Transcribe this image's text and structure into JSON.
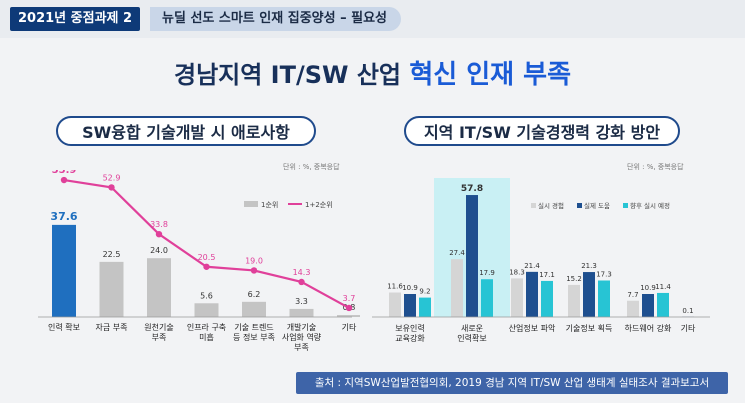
{
  "header": {
    "tag": "2021년 중점과제 2",
    "subtitle": "뉴딜 선도 스마트 인재 집중양성 – 필요성"
  },
  "main_title": {
    "prefix": "경남지역 IT/SW 산업 ",
    "highlight": "혁신 인재 부족"
  },
  "left_panel": {
    "title": "SW융합 기술개발 시 애로사항",
    "unit": "단위 : %, 중복응답"
  },
  "right_panel": {
    "title": "지역 IT/SW 기술경쟁력 강화 방안",
    "unit": "단위 : %, 중복응답"
  },
  "source": "출처 : 지역SW산업발전협의회, 2019 경남 지역 IT/SW 산업 생태계 실태조사 결과보고서",
  "colors": {
    "navy": "#0e3a78",
    "highlight_bar": "#1f6fbf",
    "gray_bar": "#c4c4c4",
    "pink_line": "#e0409a",
    "experience": "#d5d5d5",
    "actual_use": "#1e4f8f",
    "plan": "#27c4d4",
    "highlight_box": "#c9f0f4"
  },
  "chart_data": [
    {
      "type": "bar",
      "title": "SW융합 기술개발 시 애로사항",
      "categories": [
        [
          "인력 확보"
        ],
        [
          "자금 부족"
        ],
        [
          "원천기술",
          "부족"
        ],
        [
          "인프라 구축",
          "미흡"
        ],
        [
          "기술 트렌드",
          "등 정보 부족"
        ],
        [
          "개발기술",
          "사업화 역량",
          "부족"
        ],
        [
          "기타"
        ]
      ],
      "series": [
        {
          "name": "1순위",
          "type": "bar",
          "values": [
            37.6,
            22.5,
            24.0,
            5.6,
            6.2,
            3.3,
            0.8
          ]
        },
        {
          "name": "1+2순위",
          "type": "line",
          "values": [
            55.9,
            52.9,
            33.8,
            20.5,
            19.0,
            14.3,
            3.7
          ]
        }
      ],
      "value_labels_bar": [
        "37.6",
        "22.5",
        "24.0",
        "5.6",
        "6.2",
        "3.3",
        "0.8"
      ],
      "value_labels_line": [
        "55.9",
        "52.9",
        "33.8",
        "20.5",
        "19.0",
        "14.3",
        "3.7"
      ],
      "legend_position": "top-right",
      "ylim": [
        0,
        60
      ],
      "grid": false
    },
    {
      "type": "bar",
      "title": "지역 IT/SW 기술경쟁력 강화 방안",
      "categories": [
        [
          "보유인력",
          "교육강화"
        ],
        [
          "새로운",
          "인력확보"
        ],
        [
          "산업정보 파악"
        ],
        [
          "기술정보 획득"
        ],
        [
          "하드웨어 강화"
        ],
        [
          "기타"
        ]
      ],
      "series": [
        {
          "name": "실시 경험",
          "values": [
            11.6,
            27.4,
            18.3,
            15.2,
            7.7,
            null
          ]
        },
        {
          "name": "실제 도움",
          "values": [
            10.9,
            57.8,
            21.4,
            21.3,
            10.9,
            0.1
          ]
        },
        {
          "name": "향후 실시 예정",
          "values": [
            9.2,
            17.9,
            17.1,
            17.3,
            11.4,
            null
          ]
        }
      ],
      "value_labels": [
        [
          "11.6",
          "10.9",
          "9.2"
        ],
        [
          "27.4",
          "57.8",
          "17.9"
        ],
        [
          "18.3",
          "21.4",
          "17.1"
        ],
        [
          "15.2",
          "21.3",
          "17.3"
        ],
        [
          "7.7",
          "10.9",
          "11.4"
        ],
        [
          "",
          "0.1",
          ""
        ]
      ],
      "highlighted_category": "새로운 인력확보",
      "legend_position": "top-right",
      "ylim": [
        0,
        60
      ],
      "grid": false
    }
  ]
}
